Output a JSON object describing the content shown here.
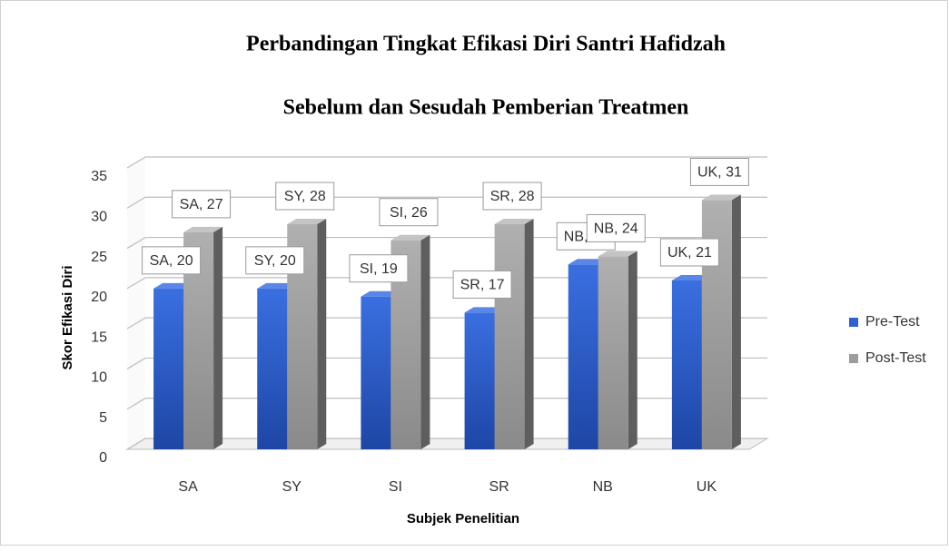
{
  "chart_data": {
    "type": "bar3d",
    "title": "Perbandingan  Tingkat Efikasi Diri Santri Hafidzah",
    "subtitle": "Sebelum dan Sesudah Pemberian  Treatmen",
    "x_label": "Subjek Penelitian",
    "y_label": "Skor Efikasi Diri",
    "categories": [
      "SA",
      "SY",
      "SI",
      "SR",
      "NB",
      "UK"
    ],
    "series": [
      {
        "name": "Pre-Test",
        "color": "#2f62d0",
        "values": [
          20,
          20,
          19,
          17,
          23,
          21
        ],
        "value_labels": [
          "SA, 20",
          "SY, 20",
          "SI, 19",
          "SR, 17",
          "NB, 23",
          "UK, 21"
        ]
      },
      {
        "name": "Post-Test",
        "color": "#9d9d9d",
        "values": [
          27,
          28,
          26,
          28,
          24,
          31
        ],
        "value_labels": [
          "SA, 27",
          "SY, 28",
          "SI, 26",
          "SR, 28",
          "NB, 24",
          "UK, 31"
        ]
      }
    ],
    "ylim": [
      0,
      35
    ],
    "yticks": [
      0,
      5,
      10,
      15,
      20,
      25,
      30,
      35
    ],
    "grid": true,
    "legend": "right"
  }
}
